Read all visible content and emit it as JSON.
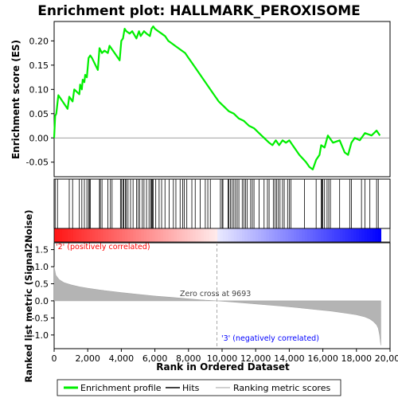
{
  "chart_data": {
    "type": "line",
    "title": "Enrichment plot: HALLMARK_PEROXISOME",
    "es_panel": {
      "ylabel": "Enrichment score (ES)",
      "ylim": [
        -0.08,
        0.24
      ],
      "yticks": [
        -0.05,
        0.0,
        0.05,
        0.1,
        0.15,
        0.2
      ],
      "ytick_labels": [
        "-0.05",
        "0.00",
        "0.05",
        "0.10",
        "0.15",
        "0.20"
      ],
      "series": [
        {
          "name": "Enrichment profile",
          "color": "#00ee00",
          "x": [
            0,
            60,
            130,
            250,
            800,
            900,
            1100,
            1200,
            1500,
            1550,
            1650,
            1700,
            1800,
            1850,
            1950,
            2050,
            2150,
            2250,
            2600,
            2700,
            2850,
            3000,
            3200,
            3300,
            3400,
            3600,
            3900,
            4000,
            4100,
            4200,
            4300,
            4500,
            4650,
            4900,
            5050,
            5150,
            5250,
            5350,
            5500,
            5700,
            5800,
            5900,
            6000,
            6200,
            6400,
            6600,
            6800,
            7000,
            7200,
            7400,
            7600,
            7800,
            8000,
            8300,
            8600,
            8900,
            9200,
            9500,
            9800,
            10100,
            10400,
            10700,
            11000,
            11300,
            11600,
            11900,
            12200,
            12500,
            12800,
            13000,
            13200,
            13400,
            13600,
            13800,
            14000,
            14200,
            14600,
            15000,
            15200,
            15400,
            15500,
            15600,
            15700,
            15800,
            15900,
            16100,
            16300,
            16600,
            17000,
            17300,
            17500,
            17700,
            17900,
            18200,
            18500,
            18900,
            19200,
            19400
          ],
          "y": [
            0.0,
            0.045,
            0.05,
            0.088,
            0.06,
            0.085,
            0.075,
            0.1,
            0.09,
            0.11,
            0.1,
            0.12,
            0.115,
            0.13,
            0.125,
            0.165,
            0.17,
            0.165,
            0.14,
            0.185,
            0.175,
            0.18,
            0.175,
            0.19,
            0.185,
            0.175,
            0.16,
            0.2,
            0.205,
            0.225,
            0.22,
            0.215,
            0.22,
            0.205,
            0.22,
            0.21,
            0.215,
            0.22,
            0.215,
            0.21,
            0.225,
            0.23,
            0.225,
            0.22,
            0.215,
            0.21,
            0.2,
            0.195,
            0.19,
            0.185,
            0.18,
            0.175,
            0.165,
            0.15,
            0.135,
            0.12,
            0.105,
            0.09,
            0.075,
            0.065,
            0.055,
            0.05,
            0.04,
            0.035,
            0.025,
            0.02,
            0.01,
            0.0,
            -0.01,
            -0.015,
            -0.005,
            -0.015,
            -0.005,
            -0.01,
            -0.005,
            -0.015,
            -0.035,
            -0.05,
            -0.06,
            -0.065,
            -0.055,
            -0.045,
            -0.04,
            -0.035,
            -0.015,
            -0.02,
            0.005,
            -0.01,
            -0.005,
            -0.03,
            -0.035,
            -0.01,
            0.0,
            -0.005,
            0.01,
            0.005,
            0.015,
            0.005
          ]
        }
      ]
    },
    "hits": {
      "name": "Hits",
      "color": "#000000",
      "positions": [
        60,
        200,
        900,
        1100,
        1500,
        1650,
        1800,
        1950,
        2050,
        2100,
        2150,
        2700,
        2750,
        2850,
        3200,
        3350,
        3450,
        3950,
        4000,
        4100,
        4150,
        4250,
        4300,
        4400,
        4550,
        4700,
        4900,
        5000,
        5100,
        5250,
        5350,
        5500,
        5650,
        5750,
        5800,
        5850,
        5900,
        6050,
        6250,
        6400,
        6600,
        6850,
        7100,
        7250,
        7500,
        7650,
        7750,
        7900,
        8200,
        8400,
        8700,
        9000,
        9150,
        9300,
        9900,
        10000,
        10050,
        10350,
        10400,
        10500,
        10600,
        10700,
        10800,
        10900,
        11000,
        11200,
        11300,
        11400,
        11500,
        11700,
        11800,
        11900,
        12200,
        12500,
        12700,
        12800,
        13050,
        13150,
        13250,
        13350,
        13450,
        13600,
        13700,
        13900,
        14000,
        14100,
        14900,
        15600,
        15900,
        15950,
        16000,
        16100,
        16250,
        16350,
        16450,
        17000,
        17600,
        17700,
        18300,
        18500,
        18800,
        19200,
        19300
      ]
    },
    "ranking_panel": {
      "name": "Ranking metric scores",
      "ylabel": "Ranked list metric (Signal2Noise)",
      "ylim": [
        -1.4,
        1.7
      ],
      "yticks": [
        -1.0,
        -0.5,
        0.0,
        0.5,
        1.0,
        1.5
      ],
      "ytick_labels": [
        "-1.0",
        "-0.5",
        "0.0",
        "0.5",
        "1.0",
        "1.5"
      ],
      "x": [
        0,
        100,
        300,
        600,
        1000,
        1500,
        2000,
        3000,
        4000,
        5000,
        6000,
        7000,
        8000,
        9000,
        9693,
        10500,
        11500,
        12500,
        13500,
        14500,
        15500,
        16500,
        17500,
        18000,
        18500,
        18800,
        19000,
        19200,
        19300,
        19380,
        19450
      ],
      "y": [
        1.0,
        0.75,
        0.62,
        0.53,
        0.47,
        0.41,
        0.37,
        0.3,
        0.24,
        0.19,
        0.14,
        0.1,
        0.06,
        0.02,
        0.0,
        -0.03,
        -0.07,
        -0.11,
        -0.15,
        -0.2,
        -0.25,
        -0.3,
        -0.37,
        -0.41,
        -0.47,
        -0.53,
        -0.6,
        -0.7,
        -0.8,
        -1.0,
        -1.3
      ],
      "zero_cross": 9693,
      "zero_cross_label": "Zero cross at 9693",
      "positive_label": "'2' (positively correlated)",
      "negative_label": "'3' (negatively correlated)",
      "positive_color": "#ff0000",
      "negative_color": "#0000ff"
    },
    "xaxis": {
      "xlabel": "Rank in Ordered Dataset",
      "xlim": [
        0,
        20000
      ],
      "list_size": 19450,
      "xticks": [
        0,
        2000,
        4000,
        6000,
        8000,
        10000,
        12000,
        14000,
        16000,
        18000,
        20000
      ],
      "xtick_labels": [
        "0",
        "2,000",
        "4,000",
        "6,000",
        "8,000",
        "10,000",
        "12,000",
        "14,000",
        "16,000",
        "18,000",
        "20,000"
      ]
    },
    "legend": {
      "placement": "bottom",
      "items": [
        {
          "label": "Enrichment profile",
          "color": "#00ee00",
          "kind": "line"
        },
        {
          "label": "Hits",
          "color": "#000000",
          "kind": "line"
        },
        {
          "label": "Ranking metric scores",
          "color": "#c0c0c0",
          "kind": "line"
        }
      ]
    }
  }
}
